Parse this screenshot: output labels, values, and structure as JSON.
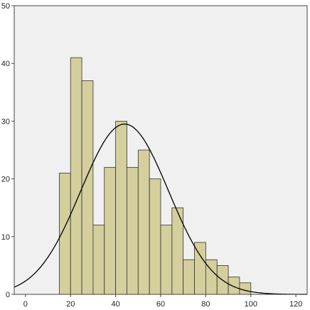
{
  "chart_data": {
    "type": "bar",
    "title": "",
    "xlabel": "",
    "ylabel": "",
    "xlim": [
      -5,
      125
    ],
    "ylim": [
      0,
      50
    ],
    "x_ticks": [
      0,
      20,
      40,
      60,
      80,
      100,
      120
    ],
    "y_ticks": [
      0,
      10,
      20,
      30,
      40,
      50
    ],
    "bin_width": 5,
    "bins": [
      {
        "start": 15,
        "end": 20,
        "count": 21
      },
      {
        "start": 20,
        "end": 25,
        "count": 41
      },
      {
        "start": 25,
        "end": 30,
        "count": 37
      },
      {
        "start": 30,
        "end": 35,
        "count": 12
      },
      {
        "start": 35,
        "end": 40,
        "count": 22
      },
      {
        "start": 40,
        "end": 45,
        "count": 30
      },
      {
        "start": 45,
        "end": 50,
        "count": 22
      },
      {
        "start": 50,
        "end": 55,
        "count": 25
      },
      {
        "start": 55,
        "end": 60,
        "count": 20
      },
      {
        "start": 60,
        "end": 65,
        "count": 12
      },
      {
        "start": 65,
        "end": 70,
        "count": 15
      },
      {
        "start": 70,
        "end": 75,
        "count": 6
      },
      {
        "start": 75,
        "end": 80,
        "count": 9
      },
      {
        "start": 80,
        "end": 85,
        "count": 6
      },
      {
        "start": 85,
        "end": 90,
        "count": 5
      },
      {
        "start": 90,
        "end": 95,
        "count": 3
      },
      {
        "start": 95,
        "end": 100,
        "count": 2
      }
    ],
    "normal_curve": {
      "mean": 44,
      "sd": 19.5,
      "peak": 29.5
    },
    "grid": false,
    "legend": "none",
    "colors": {
      "plot_background": "#f0f0f0",
      "bar_fill": "#d4cf9c",
      "bar_stroke": "#333333",
      "curve": "#000000",
      "frame": "#444444"
    }
  }
}
